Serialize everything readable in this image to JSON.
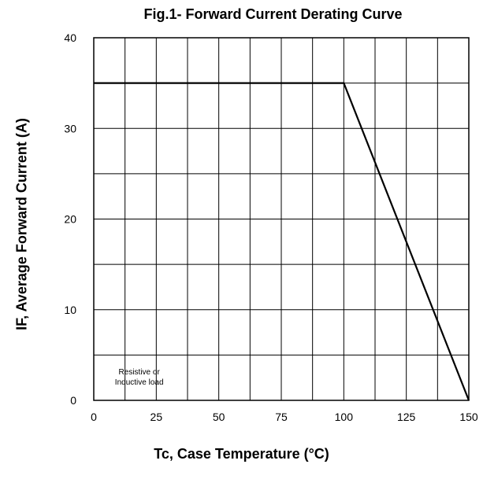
{
  "chart_data": {
    "type": "line",
    "title": "Fig.1- Forward Current Derating Curve",
    "xlabel": "Tc, Case Temperature (°C)",
    "ylabel": "IF, Average Forward Current (A)",
    "xlim": [
      0,
      150
    ],
    "ylim": [
      0,
      40
    ],
    "x_ticks": [
      0,
      25,
      50,
      75,
      100,
      125,
      150
    ],
    "y_ticks": [
      0,
      10,
      20,
      30,
      40
    ],
    "grid": true,
    "series": [
      {
        "x": [
          0,
          100,
          150
        ],
        "y": [
          35,
          35,
          0
        ]
      }
    ],
    "annotations": [
      {
        "lines": [
          "Resistive or",
          "Inductive load"
        ]
      }
    ]
  }
}
